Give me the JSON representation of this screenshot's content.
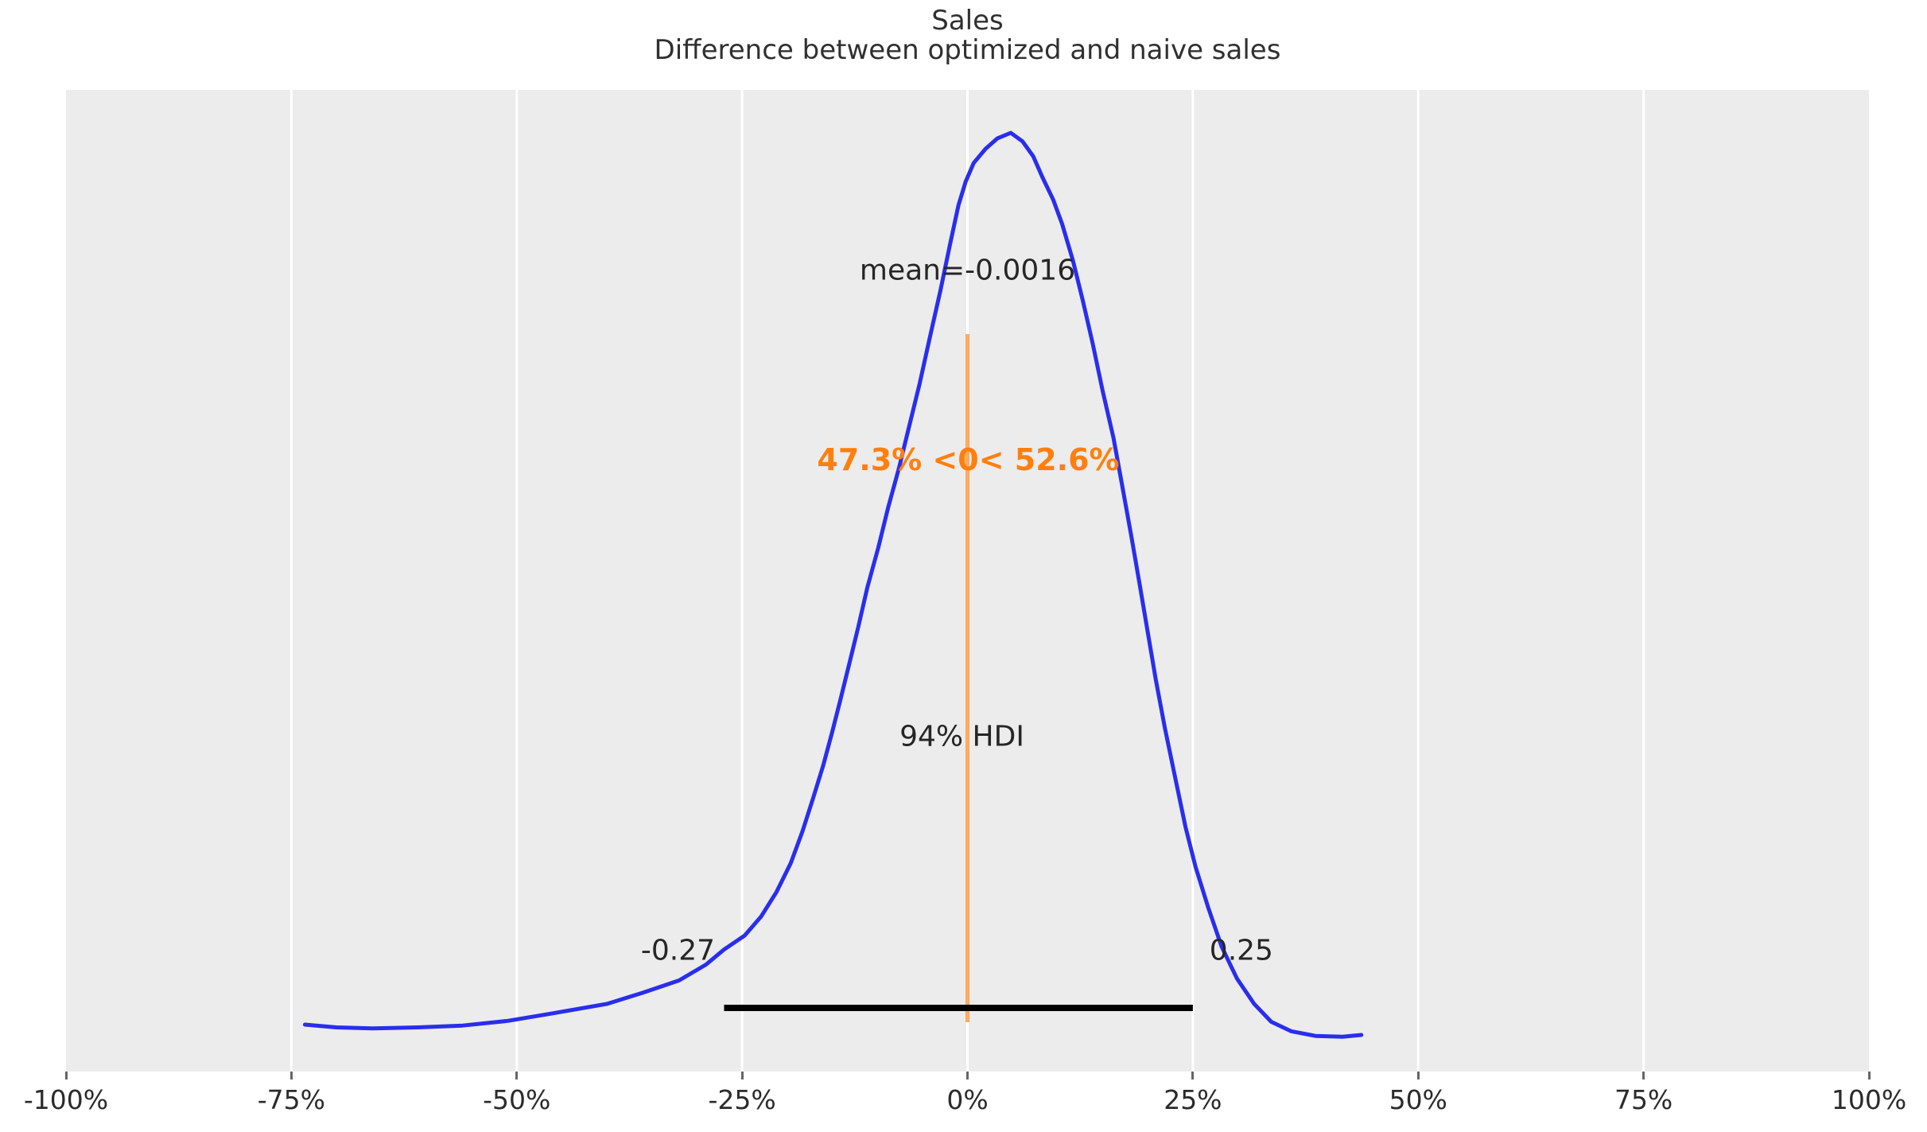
{
  "title": "Sales",
  "subtitle": "Difference between optimized and naive sales",
  "annotations": {
    "mean_label": "mean=-0.0016",
    "prob_label": "47.3% <0< 52.6%",
    "hdi_label": "94% HDI",
    "hdi_lower_label": "-0.27",
    "hdi_upper_label": "0.25"
  },
  "stats": {
    "mean": -0.0016,
    "ref_value": 0,
    "hdi_probability": 0.94,
    "hdi_lower": -0.27,
    "hdi_upper": 0.25,
    "percent_below_ref": 47.3,
    "percent_above_ref": 52.6
  },
  "colors": {
    "curve": "#2a2eec",
    "ref_line": "#ff7f0e",
    "ref_text": "#ff7f0e",
    "hdi_line": "#000000",
    "plot_background": "#ececec",
    "gridline": "#ffffff",
    "text": "#262626",
    "tick_label": "#2b2b2b",
    "tick_mark": "#666666"
  },
  "x_axis": {
    "range_pct": [
      -100,
      100
    ],
    "tick_values_pct": [
      -100,
      -75,
      -50,
      -25,
      0,
      25,
      50,
      75,
      100
    ],
    "tick_labels": [
      "-100%",
      "-75%",
      "-50%",
      "-25%",
      "0%",
      "25%",
      "50%",
      "75%",
      "100%"
    ],
    "gridline_values_pct": [
      -75,
      -50,
      -25,
      0,
      25,
      50,
      75
    ]
  },
  "chart_data": {
    "type": "line",
    "subtype": "kde-posterior-density",
    "title": "Sales",
    "subtitle": "Difference between optimized and naive sales",
    "xlabel": "",
    "ylabel": "",
    "xlim": [
      -1.0,
      1.0
    ],
    "grid": "vertical-white-on-gray",
    "legend": "none",
    "series": [
      {
        "name": "posterior-kde",
        "x": [
          -0.735,
          -0.7,
          -0.66,
          -0.61,
          -0.56,
          -0.51,
          -0.46,
          -0.4,
          -0.36,
          -0.32,
          -0.29,
          -0.27,
          -0.247,
          -0.229,
          -0.212,
          -0.196,
          -0.183,
          -0.171,
          -0.16,
          -0.15,
          -0.141,
          -0.132,
          -0.121,
          -0.111,
          -0.099,
          -0.088,
          -0.076,
          -0.065,
          -0.053,
          -0.042,
          -0.03,
          -0.019,
          -0.01,
          -0.002,
          0.007,
          0.02,
          0.033,
          0.048,
          0.061,
          0.073,
          0.083,
          0.095,
          0.105,
          0.117,
          0.128,
          0.139,
          0.15,
          0.162,
          0.172,
          0.182,
          0.191,
          0.2,
          0.209,
          0.219,
          0.23,
          0.242,
          0.253,
          0.267,
          0.282,
          0.299,
          0.318,
          0.337,
          0.359,
          0.386,
          0.416,
          0.437
        ],
        "density_normalized": [
          0.05,
          0.047,
          0.046,
          0.047,
          0.049,
          0.054,
          0.062,
          0.072,
          0.084,
          0.097,
          0.114,
          0.13,
          0.145,
          0.165,
          0.191,
          0.222,
          0.256,
          0.292,
          0.326,
          0.362,
          0.396,
          0.431,
          0.474,
          0.516,
          0.558,
          0.601,
          0.643,
          0.686,
          0.733,
          0.781,
          0.832,
          0.883,
          0.923,
          0.948,
          0.968,
          0.983,
          0.994,
          1.0,
          0.991,
          0.975,
          0.953,
          0.929,
          0.903,
          0.864,
          0.821,
          0.775,
          0.725,
          0.675,
          0.622,
          0.569,
          0.519,
          0.468,
          0.417,
          0.366,
          0.315,
          0.26,
          0.218,
          0.175,
          0.133,
          0.099,
          0.072,
          0.053,
          0.043,
          0.038,
          0.037,
          0.039
        ]
      }
    ],
    "annotations": {
      "mean": -0.0016,
      "ref_value": 0,
      "hdi_interval": [
        -0.27,
        0.25
      ],
      "hdi_probability": 0.94,
      "percent_below_ref": 47.3,
      "percent_above_ref": 52.6
    }
  }
}
